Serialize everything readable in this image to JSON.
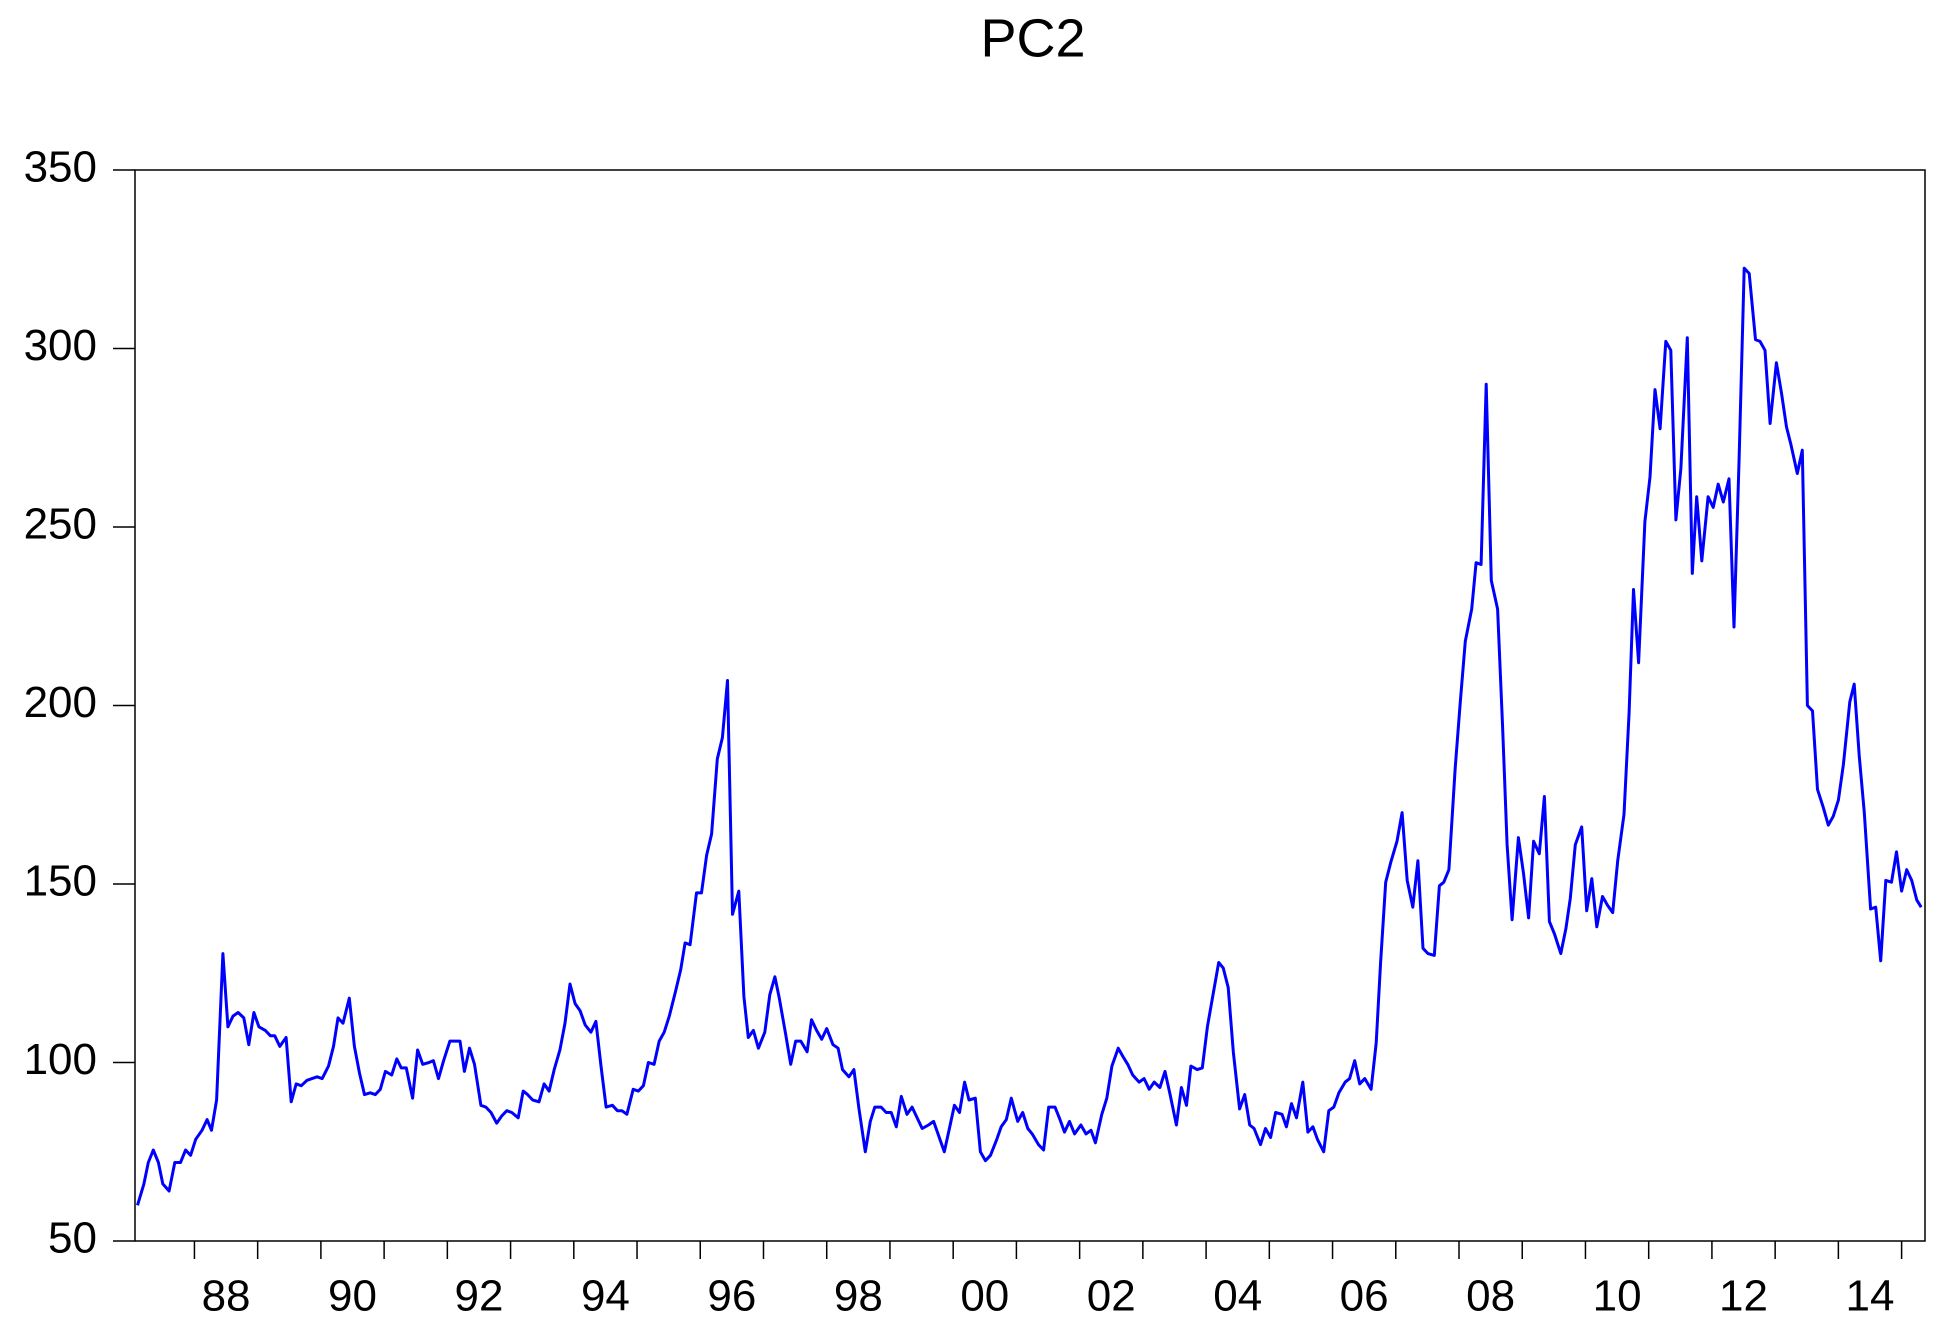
{
  "chart_data": {
    "type": "line",
    "title": "PC2",
    "color": "#0000ff",
    "grid": false,
    "xlim": [
      1987.06,
      2015.37
    ],
    "ylim": [
      50,
      350
    ],
    "yticks": [
      50,
      100,
      150,
      200,
      250,
      300,
      350
    ],
    "xticks": [
      {
        "value": 1988,
        "label": "88"
      },
      {
        "value": 1990,
        "label": "90"
      },
      {
        "value": 1992,
        "label": "92"
      },
      {
        "value": 1994,
        "label": "94"
      },
      {
        "value": 1996,
        "label": "96"
      },
      {
        "value": 1998,
        "label": "98"
      },
      {
        "value": 2000,
        "label": "00"
      },
      {
        "value": 2002,
        "label": "02"
      },
      {
        "value": 2004,
        "label": "04"
      },
      {
        "value": 2006,
        "label": "06"
      },
      {
        "value": 2008,
        "label": "08"
      },
      {
        "value": 2010,
        "label": "10"
      },
      {
        "value": 2012,
        "label": "12"
      },
      {
        "value": 2014,
        "label": "14"
      }
    ],
    "xminorticks": [
      1989,
      1991,
      1993,
      1995,
      1997,
      1999,
      2001,
      2003,
      2005,
      2007,
      2009,
      2011,
      2013,
      2015
    ],
    "x": [
      1987.1,
      1987.2,
      1987.27,
      1987.35,
      1987.43,
      1987.5,
      1987.6,
      1987.69,
      1987.78,
      1987.86,
      1987.94,
      1988.02,
      1988.12,
      1988.2,
      1988.27,
      1988.35,
      1988.45,
      1988.53,
      1988.61,
      1988.69,
      1988.78,
      1988.86,
      1988.94,
      1989.02,
      1989.12,
      1989.2,
      1989.27,
      1989.35,
      1989.45,
      1989.53,
      1989.61,
      1989.69,
      1989.78,
      1989.86,
      1989.94,
      1990.02,
      1990.12,
      1990.2,
      1990.27,
      1990.35,
      1990.45,
      1990.53,
      1990.61,
      1990.69,
      1990.78,
      1990.86,
      1990.94,
      1991.02,
      1991.12,
      1991.2,
      1991.27,
      1991.35,
      1991.45,
      1991.53,
      1991.61,
      1991.71,
      1991.78,
      1991.86,
      1991.94,
      1992.04,
      1992.12,
      1992.2,
      1992.27,
      1992.35,
      1992.43,
      1992.53,
      1992.61,
      1992.69,
      1992.78,
      1992.86,
      1992.94,
      1993.02,
      1993.12,
      1993.2,
      1993.27,
      1993.35,
      1993.45,
      1993.53,
      1993.61,
      1993.69,
      1993.78,
      1993.86,
      1993.94,
      1994.02,
      1994.1,
      1994.18,
      1994.27,
      1994.35,
      1994.43,
      1994.51,
      1994.61,
      1994.69,
      1994.76,
      1994.84,
      1994.94,
      1995.02,
      1995.1,
      1995.18,
      1995.27,
      1995.35,
      1995.43,
      1995.51,
      1995.61,
      1995.69,
      1995.76,
      1995.84,
      1995.94,
      1996.02,
      1996.1,
      1996.18,
      1996.27,
      1996.35,
      1996.43,
      1996.51,
      1996.61,
      1996.69,
      1996.76,
      1996.84,
      1996.92,
      1997.02,
      1997.1,
      1997.18,
      1997.25,
      1997.35,
      1997.43,
      1997.51,
      1997.59,
      1997.69,
      1997.76,
      1997.84,
      1997.92,
      1998.0,
      1998.1,
      1998.18,
      1998.25,
      1998.35,
      1998.43,
      1998.51,
      1998.61,
      1998.69,
      1998.76,
      1998.86,
      1998.94,
      1999.02,
      1999.1,
      1999.18,
      1999.27,
      1999.35,
      1999.43,
      1999.51,
      1999.61,
      1999.69,
      1999.76,
      1999.86,
      1999.94,
      2000.02,
      2000.1,
      2000.18,
      2000.25,
      2000.35,
      2000.43,
      2000.51,
      2000.59,
      2000.69,
      2000.76,
      2000.84,
      2000.92,
      2001.02,
      2001.1,
      2001.18,
      2001.25,
      2001.35,
      2001.43,
      2001.51,
      2001.61,
      2001.69,
      2001.76,
      2001.84,
      2001.92,
      2002.02,
      2002.1,
      2002.18,
      2002.25,
      2002.35,
      2002.43,
      2002.51,
      2002.61,
      2002.69,
      2002.76,
      2002.84,
      2002.94,
      2003.02,
      2003.1,
      2003.18,
      2003.27,
      2003.35,
      2003.43,
      2003.53,
      2003.61,
      2003.69,
      2003.76,
      2003.86,
      2003.94,
      2004.02,
      2004.1,
      2004.2,
      2004.27,
      2004.35,
      2004.43,
      2004.53,
      2004.61,
      2004.69,
      2004.76,
      2004.86,
      2004.94,
      2005.02,
      2005.1,
      2005.2,
      2005.27,
      2005.35,
      2005.43,
      2005.53,
      2005.61,
      2005.69,
      2005.76,
      2005.86,
      2005.94,
      2006.02,
      2006.1,
      2006.2,
      2006.27,
      2006.35,
      2006.43,
      2006.51,
      2006.61,
      2006.69,
      2006.76,
      2006.84,
      2006.92,
      2007.02,
      2007.1,
      2007.18,
      2007.27,
      2007.35,
      2007.43,
      2007.51,
      2007.61,
      2007.69,
      2007.76,
      2007.84,
      2007.94,
      2008.02,
      2008.1,
      2008.2,
      2008.27,
      2008.35,
      2008.43,
      2008.51,
      2008.61,
      2008.69,
      2008.76,
      2008.84,
      2008.94,
      2009.02,
      2009.1,
      2009.18,
      2009.27,
      2009.35,
      2009.43,
      2009.51,
      2009.61,
      2009.69,
      2009.76,
      2009.84,
      2009.94,
      2010.02,
      2010.1,
      2010.18,
      2010.27,
      2010.35,
      2010.43,
      2010.51,
      2010.61,
      2010.69,
      2010.76,
      2010.84,
      2010.94,
      2011.02,
      2011.1,
      2011.18,
      2011.27,
      2011.35,
      2011.43,
      2011.51,
      2011.61,
      2011.69,
      2011.76,
      2011.84,
      2011.94,
      2012.02,
      2012.1,
      2012.18,
      2012.27,
      2012.35,
      2012.43,
      2012.51,
      2012.59,
      2012.69,
      2012.76,
      2012.84,
      2012.92,
      2013.02,
      2013.1,
      2013.18,
      2013.25,
      2013.35,
      2013.43,
      2013.51,
      2013.59,
      2013.67,
      2013.76,
      2013.84,
      2013.92,
      2014.0,
      2014.08,
      2014.18,
      2014.25,
      2014.33,
      2014.41,
      2014.51,
      2014.59,
      2014.67,
      2014.75,
      2014.84,
      2014.92,
      2015.0,
      2015.08,
      2015.16,
      2015.24,
      2015.31
    ],
    "values": [
      60,
      66,
      72,
      75.5,
      72,
      66,
      64,
      72,
      72,
      75.5,
      74,
      78.5,
      81,
      84,
      81,
      89.5,
      130.5,
      110,
      113,
      114,
      112.5,
      105,
      114,
      110,
      109,
      107.5,
      107.5,
      104.5,
      107,
      89,
      94,
      93.5,
      95,
      95.5,
      96,
      95.5,
      99,
      104.5,
      112.5,
      111,
      118,
      104.5,
      97,
      91,
      91.5,
      91,
      92.5,
      97.5,
      96.5,
      101,
      98.5,
      98.5,
      90,
      103.5,
      99.5,
      100,
      100.5,
      95.5,
      100.5,
      106,
      106,
      106,
      97.5,
      104,
      99.5,
      88,
      87.5,
      86,
      83,
      85,
      86.5,
      86,
      84.5,
      92,
      91,
      89.5,
      89,
      94,
      92,
      98,
      103.5,
      111,
      122,
      116.5,
      114.5,
      110.5,
      108.5,
      111.5,
      99,
      87.5,
      88,
      86.5,
      86.5,
      85.5,
      92.5,
      92,
      93.5,
      100,
      99.5,
      106,
      108.5,
      113,
      120,
      126,
      133.5,
      133,
      147.5,
      147.5,
      158,
      164,
      185,
      191,
      207,
      141.5,
      148,
      118.5,
      107,
      109,
      104,
      108.5,
      119,
      124,
      118,
      108,
      99.5,
      106,
      106,
      103,
      112,
      109,
      106.5,
      109.5,
      105,
      104,
      98,
      96,
      98,
      87,
      75,
      83.5,
      87.5,
      87.5,
      86,
      86,
      82,
      90.5,
      85.5,
      87.5,
      84.5,
      81.5,
      82.5,
      83.5,
      80,
      75,
      81.5,
      88,
      86,
      94.5,
      89.5,
      90,
      75,
      72.5,
      74,
      78.5,
      82,
      84,
      90,
      83.5,
      86,
      81.5,
      80,
      77,
      75.5,
      87.5,
      87.5,
      84,
      80.5,
      83.5,
      80,
      82.5,
      80,
      81,
      77.5,
      85.5,
      90,
      99,
      104,
      101.5,
      99.5,
      96.5,
      94.5,
      95.5,
      92.5,
      94.5,
      93,
      97.5,
      91,
      82.5,
      93,
      88,
      99,
      98,
      98.5,
      110,
      118,
      128,
      126.5,
      121,
      103,
      87,
      91,
      82.5,
      81.5,
      77,
      81.5,
      79,
      86,
      85.5,
      82,
      88.5,
      84.5,
      94.5,
      80.5,
      82,
      78.5,
      75,
      86.5,
      87.5,
      91.5,
      94.5,
      95.5,
      100.5,
      94,
      95.5,
      92.5,
      105.5,
      128,
      150.5,
      156,
      162,
      170,
      151,
      143.5,
      156.5,
      132,
      130.5,
      130,
      149.5,
      150.5,
      154,
      182.5,
      201,
      218,
      227,
      240,
      239.5,
      290,
      235,
      227,
      194,
      161,
      140,
      163,
      153,
      140.5,
      162,
      158.5,
      174.5,
      139.5,
      136,
      130.5,
      137.5,
      146,
      161,
      166,
      142.5,
      151.5,
      138,
      146.5,
      144,
      142,
      156.5,
      169.5,
      198,
      232.5,
      212,
      251.5,
      264,
      288.5,
      277.5,
      302,
      299.5,
      252,
      266.5,
      303,
      237,
      258.5,
      240.5,
      258.5,
      255.5,
      262,
      257,
      263.5,
      222,
      269,
      322.5,
      321,
      302.5,
      302,
      299.5,
      279,
      296,
      287.5,
      278,
      273,
      265,
      271.5,
      200,
      198.5,
      176.5,
      171.5,
      166.5,
      169,
      173.5,
      183.5,
      201,
      206,
      186,
      170,
      143,
      143.5,
      128.5,
      151,
      150.5,
      159,
      148,
      154,
      151,
      145.5,
      143.5
    ]
  }
}
